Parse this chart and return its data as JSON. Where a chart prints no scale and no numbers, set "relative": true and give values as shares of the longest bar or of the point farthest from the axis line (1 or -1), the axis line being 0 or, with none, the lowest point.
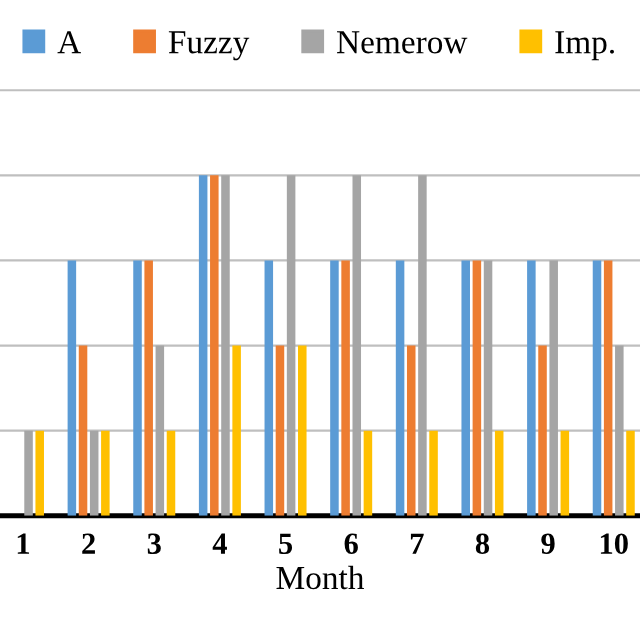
{
  "chart_data": {
    "type": "bar",
    "relative": true,
    "xlabel": "Month",
    "categories": [
      "1",
      "2",
      "3",
      "4",
      "5",
      "6",
      "7",
      "8",
      "9",
      "10"
    ],
    "series": [
      {
        "name": "A",
        "color": "#5b9bd5",
        "values": [
          null,
          0.75,
          0.75,
          1,
          0.75,
          0.75,
          0.75,
          0.75,
          0.75,
          0.75
        ]
      },
      {
        "name": "Fuzzy",
        "color": "#ed7d31",
        "values": [
          null,
          0.5,
          0.75,
          1,
          0.5,
          0.75,
          0.5,
          0.75,
          0.5,
          0.75
        ]
      },
      {
        "name": "Nemerow",
        "color": "#a5a5a5",
        "values": [
          0.25,
          0.25,
          0.5,
          1,
          1,
          1,
          1,
          0.75,
          0.75,
          0.5
        ]
      },
      {
        "name": "Imp.",
        "color": "#ffc000",
        "values": [
          0.25,
          0.25,
          0.25,
          0.5,
          0.5,
          0.25,
          0.25,
          0.25,
          0.25,
          0.25
        ]
      }
    ],
    "grid": "y",
    "legend": "top"
  }
}
